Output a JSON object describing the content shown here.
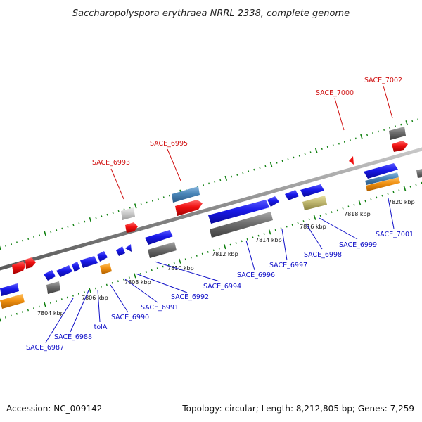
{
  "title": "Saccharopolyspora erythraea NRRL 2338, complete genome",
  "accession": "Accession: NC_009142",
  "topology": "Topology: circular; Length: 8,212,805 bp; Genes: 7,259",
  "kbp_labels": [
    "7804 kbp",
    "7806 kbp",
    "7808 kbp",
    "7810 kbp",
    "7812 kbp",
    "7814 kbp",
    "7816 kbp",
    "7818 kbp",
    "7820 kbp"
  ],
  "genes_top": [
    "SACE_6993",
    "SACE_6995",
    "SACE_7000",
    "SACE_7002"
  ],
  "genes_bottom": [
    "SACE_6987",
    "SACE_6988",
    "tolA",
    "SACE_6990",
    "SACE_6991",
    "SACE_6992",
    "SACE_6994",
    "SACE_6996",
    "SACE_6997",
    "SACE_6998",
    "SACE_6999",
    "SACE_7001"
  ],
  "colors": {
    "blue": "#1818e8",
    "red": "#f01010",
    "gray": "#6e6e6e",
    "light_gray": "#c8c8c8",
    "orange": "#f09010",
    "steel": "#4a86b8",
    "khaki": "#c0b870",
    "tick_green": "#108010"
  }
}
